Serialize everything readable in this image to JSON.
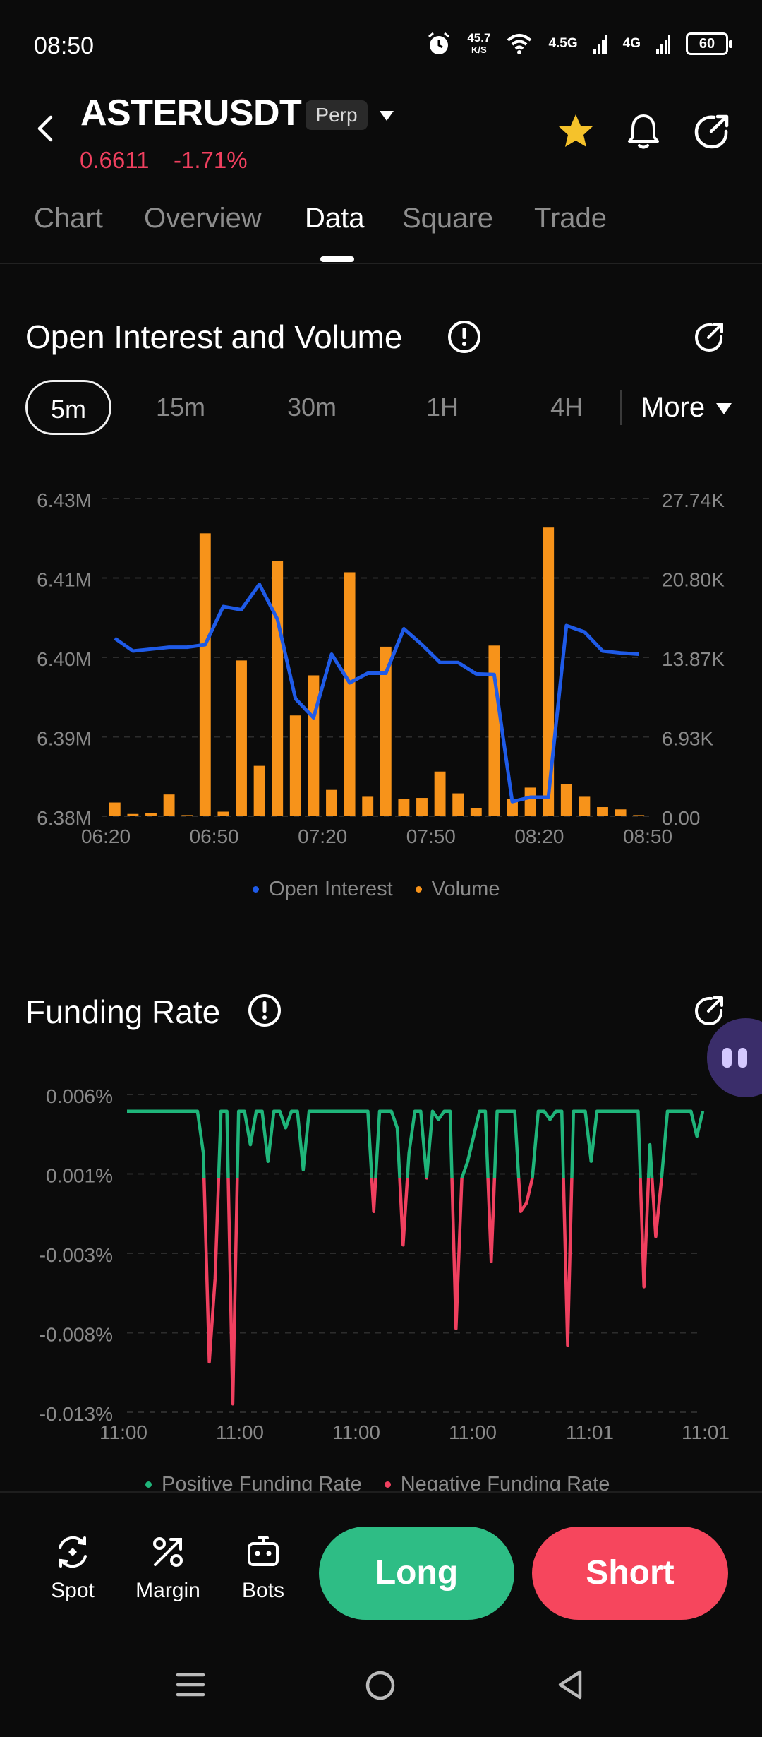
{
  "status_bar": {
    "time": "08:50",
    "net_speed_value": "45.7",
    "net_speed_unit": "K/S",
    "signal1": "4.5G",
    "signal2": "4G",
    "battery": "60",
    "icons": [
      "alarm-icon",
      "wifi-icon",
      "signal-icon",
      "battery-icon"
    ]
  },
  "header": {
    "symbol": "ASTERUSDT",
    "badge": "Perp",
    "price": "0.6611",
    "change": "-1.71%",
    "price_color": "#f0405f",
    "icons": [
      "back-icon",
      "star-icon",
      "bell-icon",
      "share-icon"
    ]
  },
  "tabs": [
    {
      "label": "Chart",
      "active": false
    },
    {
      "label": "Overview",
      "active": false
    },
    {
      "label": "Data",
      "active": true
    },
    {
      "label": "Square",
      "active": false
    },
    {
      "label": "Trade",
      "active": false
    }
  ],
  "open_interest": {
    "title": "Open Interest and Volume",
    "intervals": [
      {
        "label": "5m",
        "active": true
      },
      {
        "label": "15m",
        "active": false
      },
      {
        "label": "30m",
        "active": false
      },
      {
        "label": "1H",
        "active": false
      },
      {
        "label": "4H",
        "active": false
      }
    ],
    "more_label": "More",
    "legend_oi": "Open Interest",
    "legend_volume": "Volume"
  },
  "funding": {
    "title": "Funding Rate",
    "legend_positive": "Positive Funding Rate",
    "legend_negative": "Negative Funding Rate"
  },
  "actions": {
    "spot": "Spot",
    "margin": "Margin",
    "bots": "Bots",
    "long": "Long",
    "short": "Short"
  },
  "colors": {
    "accent_orange": "#f7931a",
    "oi_blue": "#1f5be8",
    "positive": "#1fb57a",
    "negative": "#f0405f",
    "long_button": "#2ebd85",
    "short_button": "#f6465d"
  },
  "chart_data": [
    {
      "type": "bar",
      "x_ticks": [
        "06:20",
        "06:50",
        "07:20",
        "07:50",
        "08:20",
        "08:50"
      ],
      "y_left_ticks": [
        "6.43M",
        "6.41M",
        "6.40M",
        "6.39M",
        "6.38M"
      ],
      "y_right_ticks": [
        "27.74K",
        "20.80K",
        "13.87K",
        "6.93K",
        "0.00"
      ],
      "ylim_left": [
        6380000,
        6430000
      ],
      "ylim_right": [
        0,
        27740
      ],
      "grid": true,
      "legend": "bottom-center",
      "series": [
        {
          "name": "Open Interest",
          "type": "line",
          "axis": "left",
          "color": "#1f5be8",
          "values": [
            6408000,
            6406000,
            6406300,
            6406600,
            6406600,
            6407000,
            6413000,
            6412500,
            6416500,
            6411000,
            6398500,
            6395500,
            6405500,
            6401000,
            6402500,
            6402500,
            6409500,
            6407000,
            6404200,
            6404200,
            6402400,
            6402300,
            6382300,
            6383000,
            6383000,
            6410000,
            6409000,
            6406000,
            6405700,
            6405500
          ]
        },
        {
          "name": "Volume",
          "type": "bar",
          "axis": "right",
          "color": "#f7931a",
          "values": [
            1200,
            200,
            300,
            1900,
            100,
            24700,
            400,
            13600,
            4400,
            22300,
            8800,
            12300,
            2300,
            21300,
            1700,
            14800,
            1500,
            1600,
            3900,
            2000,
            700,
            14900,
            1500,
            2500,
            25200,
            2800,
            1700,
            800,
            600,
            100
          ]
        }
      ]
    },
    {
      "type": "line",
      "x_ticks": [
        "11:00",
        "11:00",
        "11:00",
        "11:00",
        "11:01",
        "11:01"
      ],
      "y_ticks": [
        "0.006%",
        "0.001%",
        "-0.003%",
        "-0.008%",
        "-0.013%"
      ],
      "ylim": [
        -0.013,
        0.006
      ],
      "grid": true,
      "legend": "bottom-center",
      "series": [
        {
          "name": "Positive Funding Rate",
          "color": "#1fb57a"
        },
        {
          "name": "Negative Funding Rate",
          "color": "#f0405f"
        }
      ],
      "values": [
        0.005,
        0.005,
        0.005,
        0.005,
        0.005,
        0.005,
        0.005,
        0.005,
        0.005,
        0.005,
        0.005,
        0.005,
        0.005,
        0.0025,
        -0.01,
        -0.005,
        0.005,
        0.005,
        -0.0125,
        0.005,
        0.005,
        0.003,
        0.005,
        0.005,
        0.002,
        0.005,
        0.005,
        0.004,
        0.005,
        0.005,
        0.0015,
        0.005,
        0.005,
        0.005,
        0.005,
        0.005,
        0.005,
        0.005,
        0.005,
        0.005,
        0.005,
        0.005,
        -0.001,
        0.005,
        0.005,
        0.005,
        0.004,
        -0.003,
        0.0025,
        0.005,
        0.005,
        0.001,
        0.005,
        0.0045,
        0.005,
        0.005,
        -0.008,
        0.001,
        0.002,
        0.0035,
        0.005,
        0.005,
        -0.004,
        0.005,
        0.005,
        0.005,
        0.005,
        -0.001,
        -0.0005,
        0.001,
        0.005,
        0.005,
        0.0045,
        0.005,
        0.005,
        -0.009,
        0.005,
        0.005,
        0.005,
        0.002,
        0.005,
        0.005,
        0.005,
        0.005,
        0.005,
        0.005,
        0.005,
        0.005,
        -0.0055,
        0.003,
        -0.0025,
        0.001,
        0.005,
        0.005,
        0.005,
        0.005,
        0.005,
        0.0035,
        0.005
      ]
    }
  ]
}
